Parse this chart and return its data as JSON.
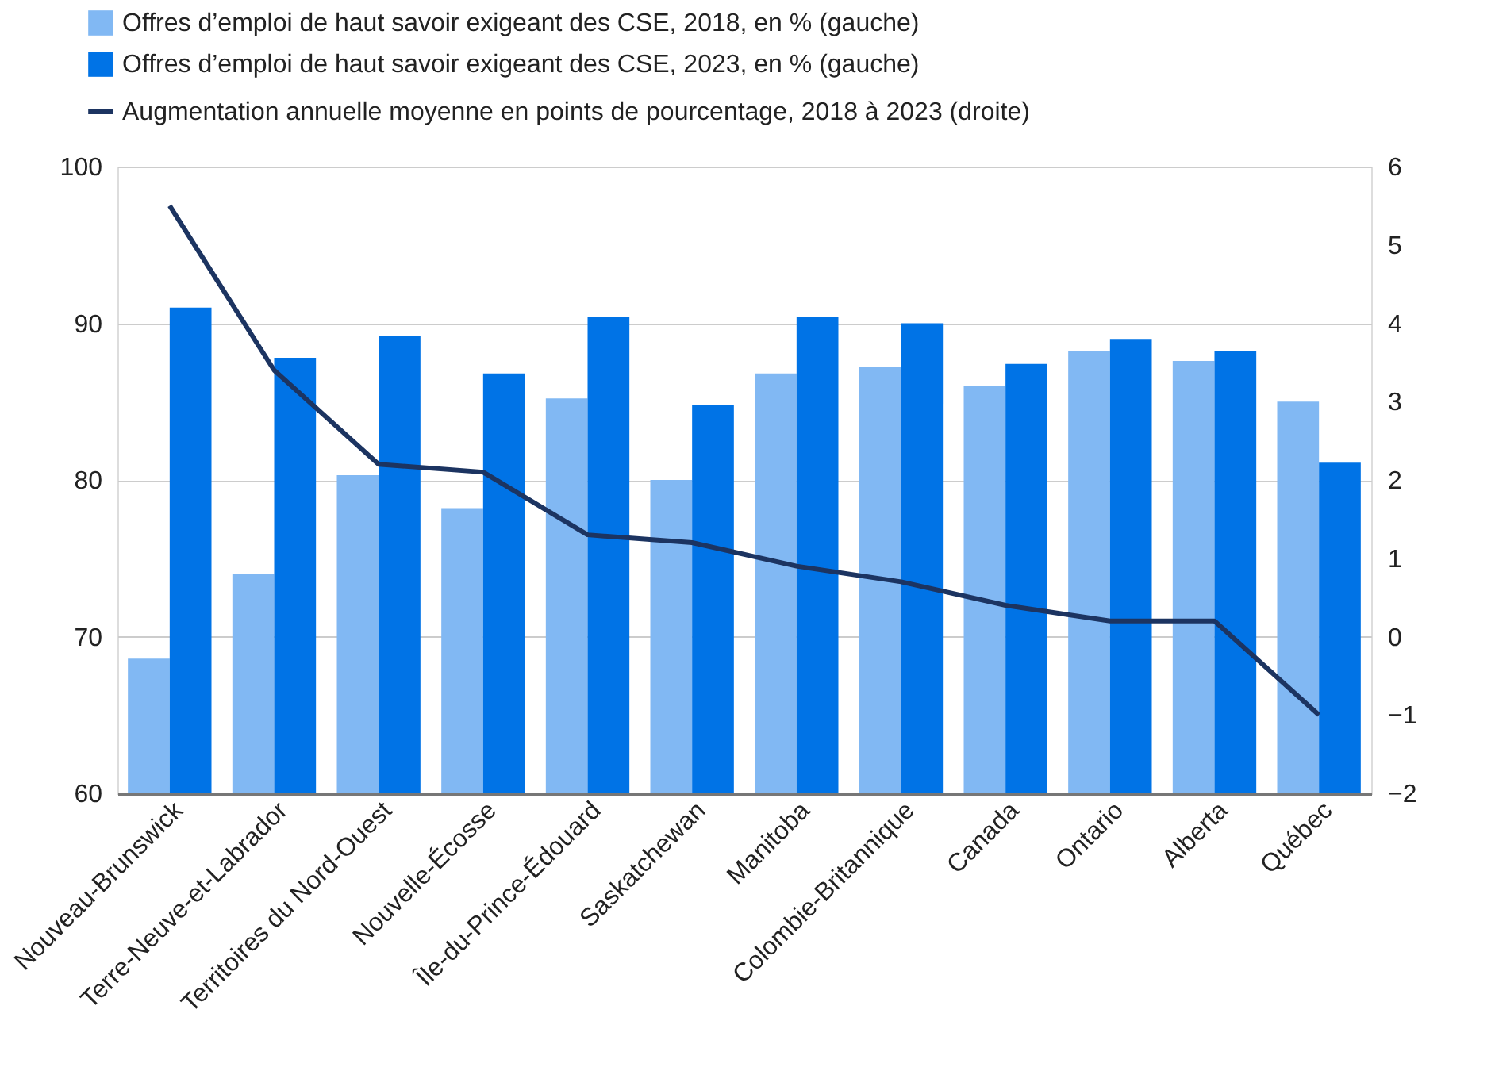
{
  "chart_data": {
    "type": "bar",
    "categories": [
      "Nouveau-Brunswick",
      "Terre-Neuve-et-Labrador",
      "Territoires du Nord-Ouest",
      "Nouvelle-Écosse",
      "Île-du-Prince-Édouard",
      "Saskatchewan",
      "Manitoba",
      "Colombie-Britannique",
      "Canada",
      "Ontario",
      "Alberta",
      "Québec"
    ],
    "series": [
      {
        "name": "Offres d’emploi de haut savoir exigeant des CSE, 2018, en % (gauche)",
        "color": "#81b8f3",
        "values": [
          68.6,
          74.0,
          80.3,
          78.2,
          85.2,
          80.0,
          86.8,
          87.2,
          86.0,
          88.2,
          87.6,
          85.0
        ]
      },
      {
        "name": "Offres d’emploi de haut savoir exigeant des CSE, 2023, en % (gauche)",
        "color": "#0073e6",
        "values": [
          91.0,
          87.8,
          89.2,
          86.8,
          90.4,
          84.8,
          90.4,
          90.0,
          87.4,
          89.0,
          88.2,
          81.1
        ]
      },
      {
        "name": "Augmentation annuelle moyenne en points de pourcentage, 2018 à 2023 (droite)",
        "color": "#1c3461",
        "type": "line",
        "axis": "y2",
        "values": [
          5.5,
          3.4,
          2.2,
          2.1,
          1.3,
          1.2,
          0.9,
          0.7,
          0.4,
          0.2,
          0.2,
          -1.0
        ]
      }
    ],
    "ylim": [
      60,
      100
    ],
    "yticks": [
      60,
      70,
      80,
      90,
      100
    ],
    "y2lim": [
      -2,
      6
    ],
    "y2ticks": [
      -2,
      -1,
      0,
      1,
      2,
      3,
      4,
      5,
      6
    ],
    "grid": "y",
    "legend": "top",
    "marker": "none",
    "line_style": "solid"
  }
}
